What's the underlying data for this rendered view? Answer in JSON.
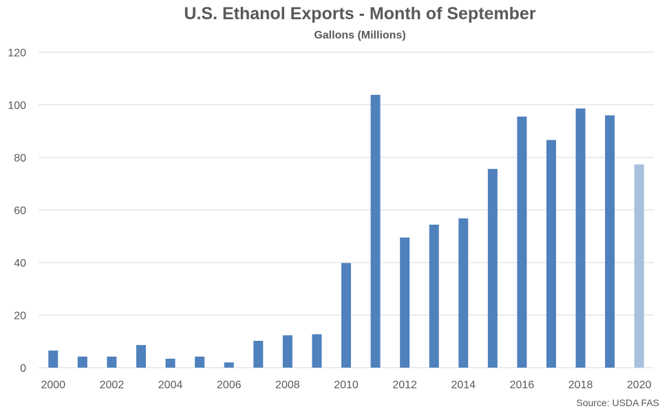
{
  "chart_data": {
    "type": "bar",
    "title": "U.S. Ethanol Exports - Month of September",
    "subtitle": "Gallons (Millions)",
    "source": "Source: USDA FAS",
    "xlabel": "",
    "ylabel": "",
    "ylim": [
      0,
      120
    ],
    "yticks": [
      0,
      20,
      40,
      60,
      80,
      100,
      120
    ],
    "grid": true,
    "legend": "none",
    "categories": [
      "2000",
      "2001",
      "2002",
      "2003",
      "2004",
      "2005",
      "2006",
      "2007",
      "2008",
      "2009",
      "2010",
      "2011",
      "2012",
      "2013",
      "2014",
      "2015",
      "2016",
      "2017",
      "2018",
      "2019",
      "2020"
    ],
    "xtick_labels": [
      "2000",
      "2002",
      "2004",
      "2006",
      "2008",
      "2010",
      "2012",
      "2014",
      "2016",
      "2018",
      "2020"
    ],
    "values": [
      6.5,
      4.2,
      4.2,
      8.6,
      3.4,
      4.2,
      2.0,
      10.2,
      12.3,
      12.7,
      39.8,
      103.8,
      49.5,
      54.4,
      56.8,
      75.6,
      95.5,
      86.6,
      98.6,
      96.0,
      77.3
    ],
    "colors": {
      "bar": "#4F81BD",
      "highlight_bar": "#A7C0DE",
      "grid": "#D9D9D9",
      "text": "#595959"
    },
    "highlight_categories": [
      "2020"
    ]
  }
}
